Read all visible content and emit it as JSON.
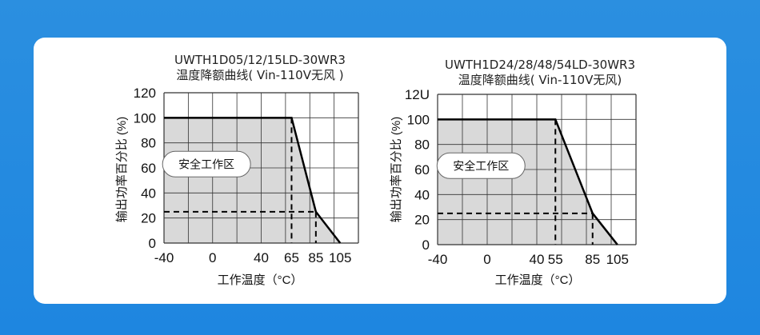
{
  "colors": {
    "background": "#2b8fe0",
    "card": "#ffffff",
    "safe_area_fill": "#d9d9d9",
    "grid": "#333333",
    "curve": "#000000"
  },
  "chart_data": [
    {
      "type": "line",
      "title": "UWTH1D05/12/15LD-30WR3",
      "subtitle": "温度降额曲线( Vin-110V无风 )",
      "xlabel": "工作温度（°C）",
      "ylabel": "输出功率百分比 (%)",
      "x_ticks": [
        "-40",
        "0",
        "40",
        "65",
        "85",
        "105"
      ],
      "y_ticks": [
        "0",
        "20",
        "40",
        "60",
        "80",
        "100",
        "120"
      ],
      "xlim": [
        -40,
        120
      ],
      "ylim": [
        0,
        120
      ],
      "grid": true,
      "series": [
        {
          "x": [
            -40,
            65,
            85,
            105
          ],
          "y": [
            100,
            100,
            25,
            0
          ]
        }
      ],
      "reference_lines": {
        "vertical": [
          65,
          85
        ],
        "horizontal": 25
      },
      "annotation": "安全工作区"
    },
    {
      "type": "line",
      "title": "UWTH1D24/28/48/54LD-30WR3",
      "subtitle": "温度降额曲线( Vin-110V无风)",
      "xlabel": "工作温度（°C）",
      "ylabel": "输出功率百分比 (%)",
      "x_ticks": [
        "-40",
        "0",
        "40",
        "55",
        "85",
        "105"
      ],
      "y_ticks": [
        "0",
        "20",
        "40",
        "60",
        "80",
        "100",
        "12U"
      ],
      "xlim": [
        -40,
        120
      ],
      "ylim": [
        0,
        120
      ],
      "grid": true,
      "series": [
        {
          "x": [
            -40,
            55,
            85,
            105
          ],
          "y": [
            100,
            100,
            25,
            0
          ]
        }
      ],
      "reference_lines": {
        "vertical": [
          55,
          85
        ],
        "horizontal": 25
      },
      "annotation": "安全工作区"
    }
  ]
}
